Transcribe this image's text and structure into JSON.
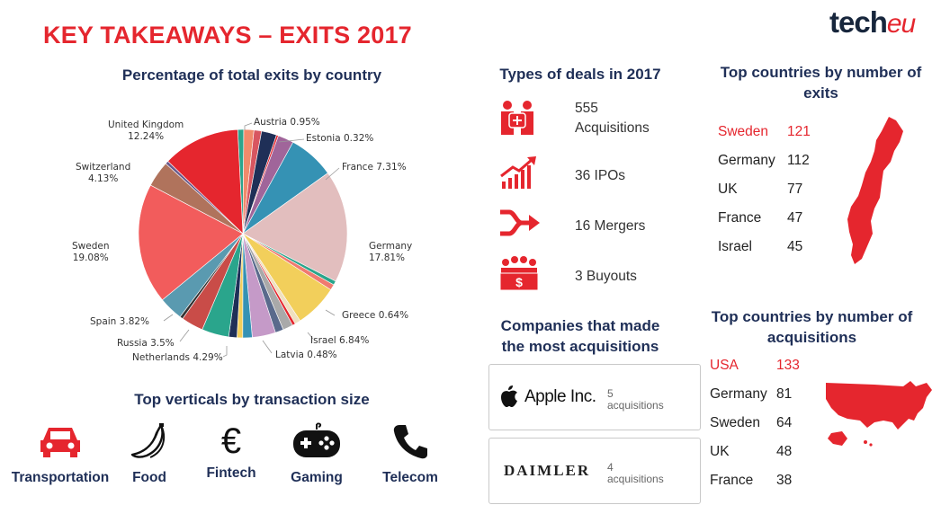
{
  "header": {
    "title": "KEY TAKEAWAYS – EXITS 2017",
    "logo_main": "tech",
    "logo_accent": "eu"
  },
  "pie_section": {
    "title": "Percentage of total exits by country"
  },
  "chart_data": {
    "type": "pie",
    "title": "Percentage of total exits by country",
    "slices": [
      {
        "label": "Austria",
        "value": 0.95,
        "display": "Austria 0.95%",
        "color": "#2aa58c"
      },
      {
        "label": "",
        "value": 1.6,
        "color": "#f08a6b"
      },
      {
        "label": "",
        "value": 1.2,
        "color": "#d85660"
      },
      {
        "label": "",
        "value": 2.4,
        "color": "#1f2f57"
      },
      {
        "label": "Estonia",
        "value": 0.32,
        "display": "Estonia 0.32%",
        "color": "#e5262e"
      },
      {
        "label": "",
        "value": 2.5,
        "color": "#a0659a"
      },
      {
        "label": "France",
        "value": 7.31,
        "display": "France 7.31%",
        "color": "#3592b4"
      },
      {
        "label": "Germany",
        "value": 17.81,
        "display": "Germany 17.81%",
        "color": "#e2bebe"
      },
      {
        "label": "Greece",
        "value": 0.64,
        "display": "Greece 0.64%",
        "color": "#2aa58c"
      },
      {
        "label": "",
        "value": 0.9,
        "color": "#f07a70"
      },
      {
        "label": "Israel",
        "value": 6.84,
        "display": "Israel 6.84%",
        "color": "#f2cf5b"
      },
      {
        "label": "",
        "value": 0.9,
        "color": "#f0e0c0"
      },
      {
        "label": "Latvia",
        "value": 0.48,
        "display": "Latvia 0.48%",
        "color": "#e5262e"
      },
      {
        "label": "",
        "value": 1.6,
        "color": "#a9a9a9"
      },
      {
        "label": "",
        "value": 1.3,
        "color": "#5a6a8c"
      },
      {
        "label": "",
        "value": 3.7,
        "color": "#c59ac8"
      },
      {
        "label": "",
        "value": 1.5,
        "color": "#3592b4"
      },
      {
        "label": "",
        "value": 0.9,
        "color": "#f2cf5b"
      },
      {
        "label": "",
        "value": 1.3,
        "color": "#1f2f57"
      },
      {
        "label": "Netherlands",
        "value": 4.29,
        "display": "Netherlands 4.29%",
        "color": "#2aa58c"
      },
      {
        "label": "Russia",
        "value": 3.5,
        "display": "Russia 3.5%",
        "color": "#c94c48"
      },
      {
        "label": "",
        "value": 0.5,
        "color": "#333333"
      },
      {
        "label": "Spain",
        "value": 3.82,
        "display": "Spain 3.82%",
        "color": "#5a9ab0"
      },
      {
        "label": "Sweden",
        "value": 19.08,
        "display": "Sweden 19.08%",
        "color": "#f25c5c"
      },
      {
        "label": "Switzerland",
        "value": 4.13,
        "display": "Switzerland 4.13%",
        "color": "#b0735c"
      },
      {
        "label": "",
        "value": 0.5,
        "color": "#6a5a8c"
      },
      {
        "label": "United Kingdom",
        "value": 12.24,
        "display": "United Kingdom 12.24%",
        "color": "#e5262e"
      }
    ]
  },
  "pie_labels": {
    "austria": "Austria 0.95%",
    "estonia": "Estonia 0.32%",
    "france": "France 7.31%",
    "germany": "Germany",
    "germany_pct": "17.81%",
    "greece": "Greece 0.64%",
    "israel": "Israel 6.84%",
    "latvia": "Latvia 0.48%",
    "netherlands": "Netherlands 4.29%",
    "russia": "Russia 3.5%",
    "spain": "Spain 3.82%",
    "sweden": "Sweden",
    "sweden_pct": "19.08%",
    "switzerland": "Switzerland",
    "switzerland_pct": "4.13%",
    "uk": "United Kingdom",
    "uk_pct": "12.24%"
  },
  "deals": {
    "title": "Types of deals in 2017",
    "items": [
      {
        "line1": "555",
        "line2": "Acquisitions",
        "icon": "handshake-people-icon"
      },
      {
        "line1": "36 IPOs",
        "icon": "rising-chart-icon"
      },
      {
        "line1": "16 Mergers",
        "icon": "merge-arrows-icon"
      },
      {
        "line1": "3 Buyouts",
        "icon": "buyout-people-icon"
      }
    ]
  },
  "exits_by_country": {
    "title_line1": "Top countries by number of",
    "title_line2": "exits",
    "rows": [
      {
        "country": "Sweden",
        "value": "121"
      },
      {
        "country": "Germany",
        "value": "112"
      },
      {
        "country": "UK",
        "value": "77"
      },
      {
        "country": "France",
        "value": "47"
      },
      {
        "country": "Israel",
        "value": "45"
      }
    ],
    "highlight_color": "#e5262e"
  },
  "acquisitions_by_country": {
    "title_line1": "Top countries by number of",
    "title_line2": "acquisitions",
    "rows": [
      {
        "country": "USA",
        "value": "133"
      },
      {
        "country": "Germany",
        "value": "81"
      },
      {
        "country": "Sweden",
        "value": "64"
      },
      {
        "country": "UK",
        "value": "48"
      },
      {
        "country": "France",
        "value": "38"
      }
    ]
  },
  "companies": {
    "title_line1": "Companies that made",
    "title_line2": "the most acquisitions",
    "items": [
      {
        "name": "Apple Inc.",
        "count": "5",
        "unit": "acquisitions"
      },
      {
        "name": "DAIMLER",
        "count": "4",
        "unit": "acquisitions"
      }
    ]
  },
  "verticals": {
    "title": "Top verticals by transaction size",
    "items": [
      {
        "label": "Transportation",
        "icon": "car-icon"
      },
      {
        "label": "Food",
        "icon": "banana-icon"
      },
      {
        "label": "Fintech",
        "icon": "euro-icon"
      },
      {
        "label": "Gaming",
        "icon": "gamepad-icon"
      },
      {
        "label": "Telecom",
        "icon": "phone-icon"
      }
    ]
  }
}
